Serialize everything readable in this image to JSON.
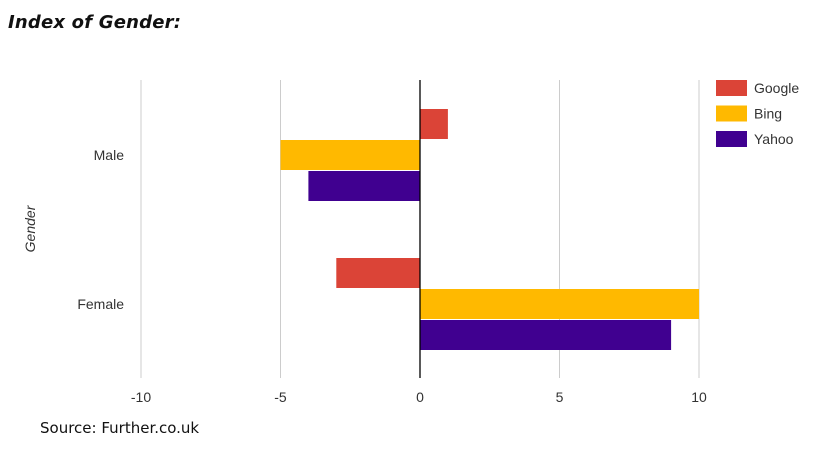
{
  "title": "Index of Gender:",
  "source": "Source: Further.co.uk",
  "colors": {
    "google": "#DB4437",
    "bing": "#FFB900",
    "yahoo": "#400090",
    "grid": "#cccccc",
    "zero_axis": "#000000"
  },
  "chart_data": {
    "type": "bar",
    "orientation": "horizontal",
    "categories": [
      "Male",
      "Female"
    ],
    "series": [
      {
        "name": "Google",
        "values": [
          1,
          -3
        ]
      },
      {
        "name": "Bing",
        "values": [
          -5,
          10
        ]
      },
      {
        "name": "Yahoo",
        "values": [
          -4,
          9
        ]
      }
    ],
    "ylabel": "Gender",
    "xlim": [
      -12,
      13.5
    ],
    "xticks": [
      -10,
      -5,
      0,
      5,
      10
    ],
    "grid": true,
    "legend": "top-right"
  }
}
